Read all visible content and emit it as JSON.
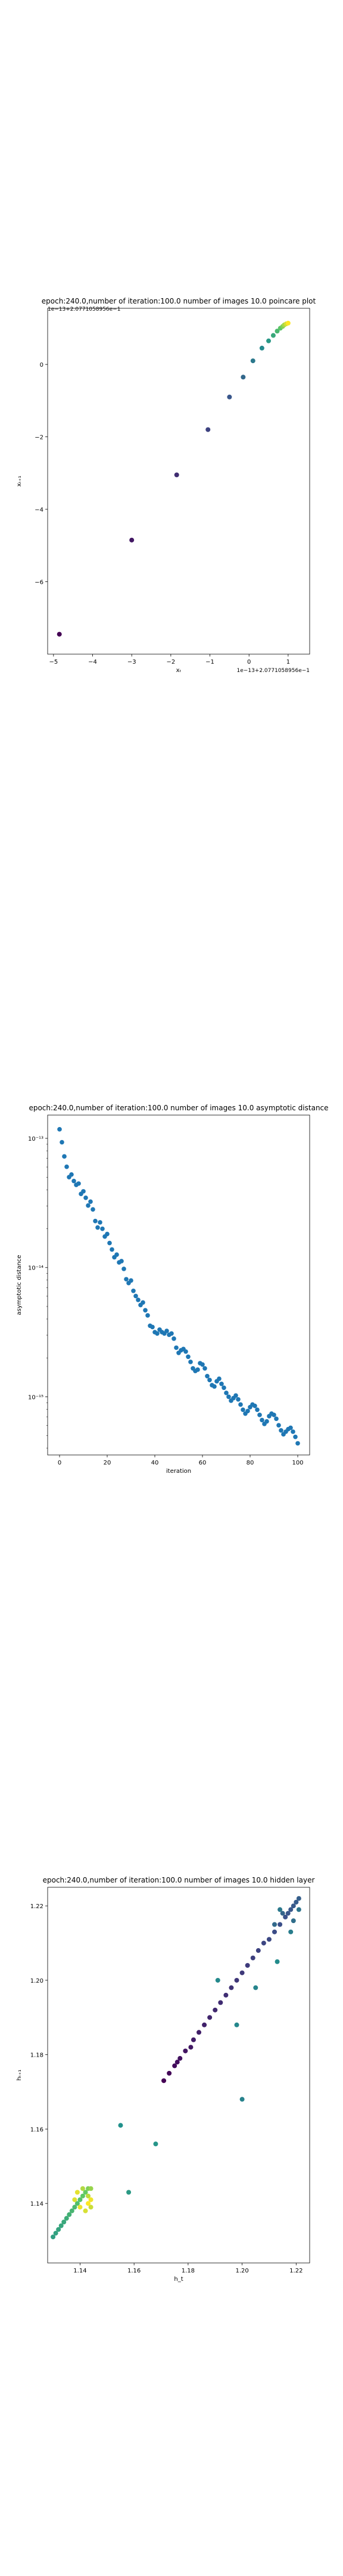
{
  "chart_data": [
    {
      "type": "scatter",
      "title": "epoch:240.0,number of iteration:100.0  number of images 10.0 poincare plot",
      "xlabel": "xₜ",
      "ylabel": "xₜ₊₁",
      "xlim": [
        -5.15,
        1.55
      ],
      "ylim": [
        -8.0,
        1.55
      ],
      "xticks": [
        -5,
        -4,
        -3,
        -2,
        -1,
        0,
        1
      ],
      "yticks": [
        -6,
        -4,
        -2,
        0
      ],
      "offset_x": "1e−13+2.0771058956e−1",
      "offset_y": "1e−13+2.0771058956e−1",
      "points": [
        {
          "x": -4.85,
          "y": -7.45
        },
        {
          "x": -3.0,
          "y": -4.85
        },
        {
          "x": -1.85,
          "y": -3.05
        },
        {
          "x": -1.05,
          "y": -1.8
        },
        {
          "x": -0.5,
          "y": -0.9
        },
        {
          "x": -0.15,
          "y": -0.35
        },
        {
          "x": 0.1,
          "y": 0.1
        },
        {
          "x": 0.33,
          "y": 0.45
        },
        {
          "x": 0.5,
          "y": 0.65
        },
        {
          "x": 0.62,
          "y": 0.8
        },
        {
          "x": 0.72,
          "y": 0.92
        },
        {
          "x": 0.8,
          "y": 1.0
        },
        {
          "x": 0.86,
          "y": 1.05
        },
        {
          "x": 0.9,
          "y": 1.09
        },
        {
          "x": 0.95,
          "y": 1.12
        },
        {
          "x": 1.0,
          "y": 1.14
        }
      ],
      "colormap": "viridis"
    },
    {
      "type": "scatter",
      "title": "epoch:240.0,number of iteration:100.0  number of images 10.0 asymptotic distance",
      "xlabel": "iteration",
      "ylabel": "asymptotic distance",
      "xlim": [
        -5,
        105
      ],
      "xticks": [
        0,
        20,
        40,
        60,
        80,
        100
      ],
      "yscale": "log",
      "ylim_log10": [
        -15.45,
        -12.82
      ],
      "yticks_log10": [
        -15,
        -14,
        -13
      ],
      "ytick_labels": [
        "10⁻¹⁵",
        "10⁻¹⁴",
        "10⁻¹³"
      ],
      "marker_color": "#1f77b4",
      "y_log10": [
        -12.93,
        -13.03,
        -13.14,
        -13.22,
        -13.3,
        -13.28,
        -13.33,
        -13.36,
        -13.35,
        -13.43,
        -13.41,
        -13.46,
        -13.52,
        -13.49,
        -13.55,
        -13.64,
        -13.69,
        -13.65,
        -13.7,
        -13.76,
        -13.74,
        -13.81,
        -13.86,
        -13.92,
        -13.9,
        -13.96,
        -13.95,
        -14.01,
        -14.09,
        -14.12,
        -14.1,
        -14.18,
        -14.22,
        -14.25,
        -14.29,
        -14.27,
        -14.33,
        -14.37,
        -14.45,
        -14.46,
        -14.5,
        -14.51,
        -14.48,
        -14.5,
        -14.51,
        -14.49,
        -14.52,
        -14.51,
        -14.55,
        -14.62,
        -14.66,
        -14.64,
        -14.63,
        -14.65,
        -14.69,
        -14.73,
        -14.78,
        -14.8,
        -14.79,
        -14.74,
        -14.75,
        -14.78,
        -14.84,
        -14.87,
        -14.91,
        -14.92,
        -14.88,
        -14.86,
        -14.9,
        -14.93,
        -14.97,
        -15.0,
        -15.03,
        -15.01,
        -14.99,
        -15.02,
        -15.06,
        -15.1,
        -15.13,
        -15.11,
        -15.08,
        -15.06,
        -15.07,
        -15.1,
        -15.14,
        -15.18,
        -15.21,
        -15.19,
        -15.15,
        -15.13,
        -15.14,
        -15.17,
        -15.22,
        -15.26,
        -15.29,
        -15.27,
        -15.25,
        -15.24,
        -15.27,
        -15.31,
        -15.36
      ]
    },
    {
      "type": "scatter",
      "title": "epoch:240.0,number of iteration:100.0  number of images 10.0 hidden layer",
      "xlabel": "h_t",
      "ylabel": "hₜ₊₁",
      "xlim": [
        1.128,
        1.225
      ],
      "ylim": [
        1.124,
        1.225
      ],
      "xticks": [
        1.14,
        1.16,
        1.18,
        1.2,
        1.22
      ],
      "yticks": [
        1.14,
        1.16,
        1.18,
        1.2,
        1.22
      ],
      "xtick_labels": [
        "1.14",
        "1.16",
        "1.18",
        "1.20",
        "1.22"
      ],
      "ytick_labels": [
        "1.14",
        "1.16",
        "1.18",
        "1.20",
        "1.22"
      ],
      "colormap": "viridis",
      "points": [
        {
          "x": 1.171,
          "y": 1.173,
          "c": 0.0
        },
        {
          "x": 1.173,
          "y": 1.175,
          "c": 0.02
        },
        {
          "x": 1.175,
          "y": 1.177,
          "c": 0.03
        },
        {
          "x": 1.176,
          "y": 1.178,
          "c": 0.04
        },
        {
          "x": 1.177,
          "y": 1.179,
          "c": 0.05
        },
        {
          "x": 1.179,
          "y": 1.181,
          "c": 0.06
        },
        {
          "x": 1.181,
          "y": 1.182,
          "c": 0.07
        },
        {
          "x": 1.182,
          "y": 1.184,
          "c": 0.08
        },
        {
          "x": 1.184,
          "y": 1.186,
          "c": 0.09
        },
        {
          "x": 1.186,
          "y": 1.188,
          "c": 0.1
        },
        {
          "x": 1.188,
          "y": 1.19,
          "c": 0.11
        },
        {
          "x": 1.19,
          "y": 1.192,
          "c": 0.12
        },
        {
          "x": 1.192,
          "y": 1.194,
          "c": 0.13
        },
        {
          "x": 1.194,
          "y": 1.196,
          "c": 0.14
        },
        {
          "x": 1.196,
          "y": 1.198,
          "c": 0.15
        },
        {
          "x": 1.198,
          "y": 1.2,
          "c": 0.16
        },
        {
          "x": 1.2,
          "y": 1.202,
          "c": 0.17
        },
        {
          "x": 1.202,
          "y": 1.204,
          "c": 0.18
        },
        {
          "x": 1.204,
          "y": 1.206,
          "c": 0.19
        },
        {
          "x": 1.206,
          "y": 1.208,
          "c": 0.2
        },
        {
          "x": 1.208,
          "y": 1.21,
          "c": 0.21
        },
        {
          "x": 1.21,
          "y": 1.211,
          "c": 0.22
        },
        {
          "x": 1.212,
          "y": 1.213,
          "c": 0.23
        },
        {
          "x": 1.214,
          "y": 1.215,
          "c": 0.24
        },
        {
          "x": 1.216,
          "y": 1.217,
          "c": 0.25
        },
        {
          "x": 1.217,
          "y": 1.218,
          "c": 0.26
        },
        {
          "x": 1.218,
          "y": 1.219,
          "c": 0.27
        },
        {
          "x": 1.219,
          "y": 1.22,
          "c": 0.28
        },
        {
          "x": 1.22,
          "y": 1.221,
          "c": 0.29
        },
        {
          "x": 1.221,
          "y": 1.222,
          "c": 0.3
        },
        {
          "x": 1.215,
          "y": 1.218,
          "c": 0.32
        },
        {
          "x": 1.212,
          "y": 1.215,
          "c": 0.34
        },
        {
          "x": 1.219,
          "y": 1.216,
          "c": 0.36
        },
        {
          "x": 1.221,
          "y": 1.219,
          "c": 0.38
        },
        {
          "x": 1.214,
          "y": 1.219,
          "c": 0.4
        },
        {
          "x": 1.218,
          "y": 1.213,
          "c": 0.42
        },
        {
          "x": 1.2,
          "y": 1.168,
          "c": 0.44
        },
        {
          "x": 1.205,
          "y": 1.198,
          "c": 0.45
        },
        {
          "x": 1.198,
          "y": 1.188,
          "c": 0.46
        },
        {
          "x": 1.191,
          "y": 1.2,
          "c": 0.47
        },
        {
          "x": 1.213,
          "y": 1.205,
          "c": 0.48
        },
        {
          "x": 1.155,
          "y": 1.161,
          "c": 0.5
        },
        {
          "x": 1.168,
          "y": 1.156,
          "c": 0.52
        },
        {
          "x": 1.158,
          "y": 1.143,
          "c": 0.54
        },
        {
          "x": 1.13,
          "y": 1.131,
          "c": 0.56
        },
        {
          "x": 1.131,
          "y": 1.132,
          "c": 0.57
        },
        {
          "x": 1.132,
          "y": 1.133,
          "c": 0.58
        },
        {
          "x": 1.133,
          "y": 1.134,
          "c": 0.59
        },
        {
          "x": 1.134,
          "y": 1.135,
          "c": 0.6
        },
        {
          "x": 1.135,
          "y": 1.136,
          "c": 0.62
        },
        {
          "x": 1.136,
          "y": 1.137,
          "c": 0.64
        },
        {
          "x": 1.137,
          "y": 1.138,
          "c": 0.66
        },
        {
          "x": 1.138,
          "y": 1.139,
          "c": 0.68
        },
        {
          "x": 1.139,
          "y": 1.14,
          "c": 0.7
        },
        {
          "x": 1.14,
          "y": 1.141,
          "c": 0.72
        },
        {
          "x": 1.141,
          "y": 1.142,
          "c": 0.74
        },
        {
          "x": 1.142,
          "y": 1.143,
          "c": 0.76
        },
        {
          "x": 1.143,
          "y": 1.144,
          "c": 0.8
        },
        {
          "x": 1.144,
          "y": 1.144,
          "c": 0.84
        },
        {
          "x": 1.141,
          "y": 1.144,
          "c": 0.88
        },
        {
          "x": 1.143,
          "y": 1.142,
          "c": 0.9
        },
        {
          "x": 1.144,
          "y": 1.139,
          "c": 0.92
        },
        {
          "x": 1.142,
          "y": 1.138,
          "c": 0.94
        },
        {
          "x": 1.139,
          "y": 1.143,
          "c": 0.96
        },
        {
          "x": 1.144,
          "y": 1.141,
          "c": 0.98
        },
        {
          "x": 1.143,
          "y": 1.14,
          "c": 1.0
        },
        {
          "x": 1.14,
          "y": 1.139,
          "c": 0.97
        },
        {
          "x": 1.138,
          "y": 1.141,
          "c": 0.95
        }
      ]
    }
  ]
}
